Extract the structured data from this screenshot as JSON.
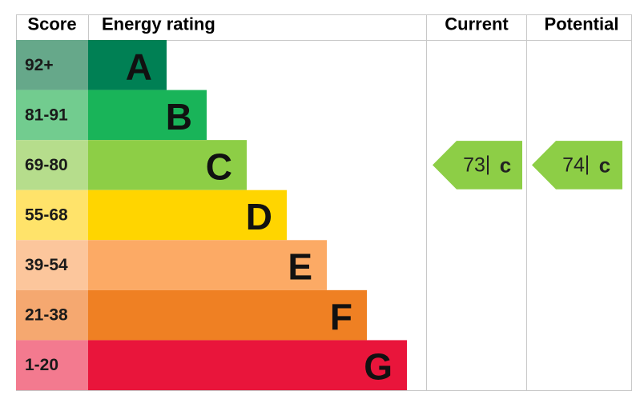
{
  "chart_data": {
    "type": "energy-rating",
    "headers": [
      "Score",
      "Energy rating",
      "Current",
      "Potential"
    ],
    "bands": [
      {
        "score": "92+",
        "letter": "A",
        "color": "#008054",
        "score_color": "#66a88a"
      },
      {
        "score": "81-91",
        "letter": "B",
        "color": "#19b459",
        "score_color": "#72cc8f"
      },
      {
        "score": "69-80",
        "letter": "C",
        "color": "#8dce46",
        "score_color": "#b6dd8c"
      },
      {
        "score": "55-68",
        "letter": "D",
        "color": "#ffd500",
        "score_color": "#ffe36a"
      },
      {
        "score": "39-54",
        "letter": "E",
        "color": "#fcaa65",
        "score_color": "#fcc69c"
      },
      {
        "score": "21-38",
        "letter": "F",
        "color": "#ef8023",
        "score_color": "#f5a870"
      },
      {
        "score": "1-20",
        "letter": "G",
        "color": "#e9153b",
        "score_color": "#f37a8f"
      }
    ],
    "current": {
      "value": 73,
      "rating": "c"
    },
    "potential": {
      "value": 74,
      "rating": "c"
    }
  }
}
